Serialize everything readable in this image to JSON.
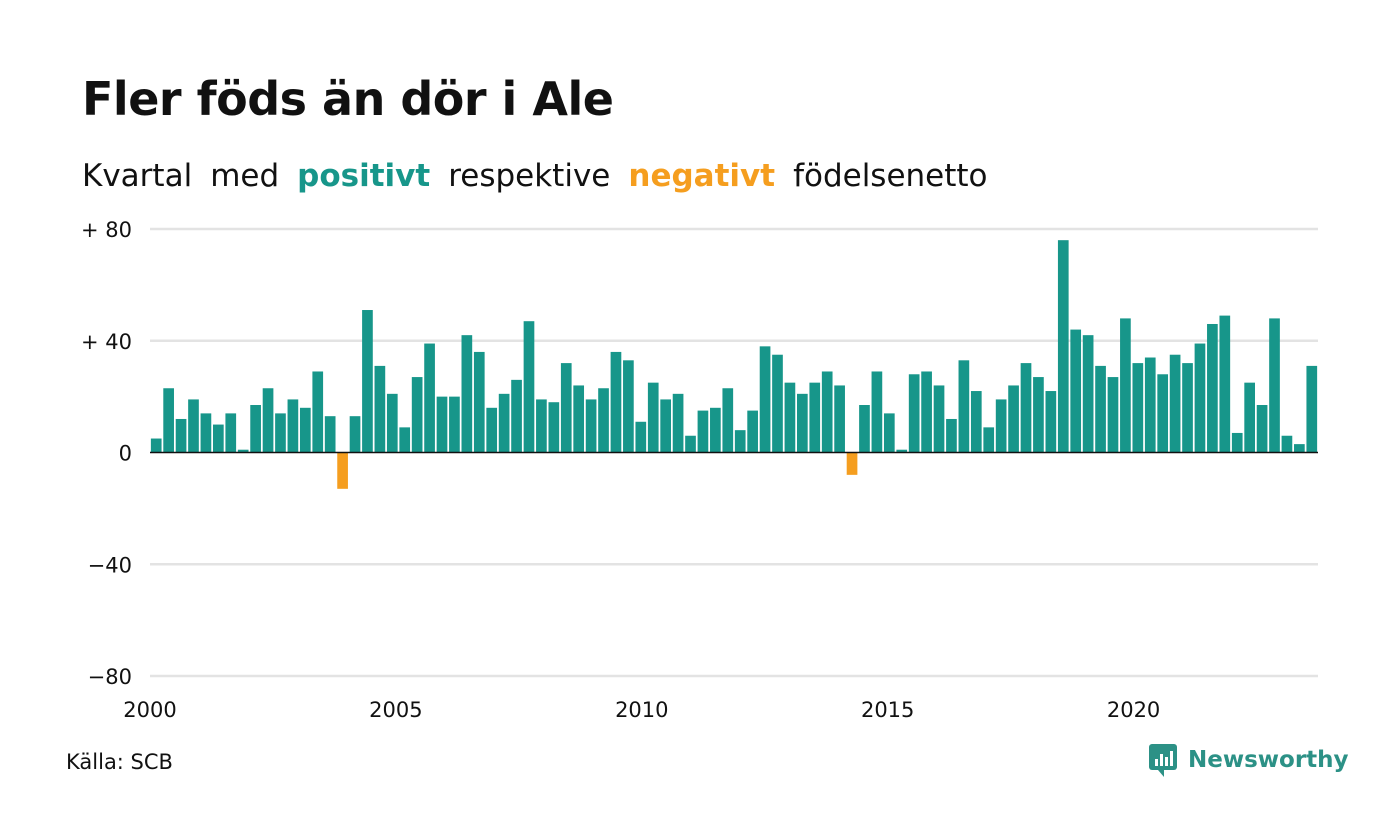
{
  "header": {
    "title": "Fler föds än dör i Ale",
    "subtitle_parts": [
      "Kvartal",
      "med",
      "positivt",
      "respektive",
      "negativt",
      "födelsenetto"
    ]
  },
  "colors": {
    "positive": "#17968A",
    "negative": "#F59E1F",
    "grid": "#E3E3E3",
    "axis": "#111111",
    "brand": "#2C9186"
  },
  "footer": {
    "source": "Källa: SCB",
    "brand": "Newsworthy",
    "brand_icon": "newsworthy-logo-icon"
  },
  "chart_data": {
    "type": "bar",
    "title": "Fler föds än dör i Ale",
    "subtitle": "Kvartal med positivt respektive negativt födelsenetto",
    "xlabel": "",
    "ylabel": "",
    "ylim": [
      -80,
      80
    ],
    "yticks": [
      80,
      40,
      0,
      -40,
      -80
    ],
    "ytick_labels": [
      "+ 80",
      "+ 40",
      "0",
      "−40",
      "−80"
    ],
    "xlim": [
      2000.0,
      2023.75
    ],
    "xticks": [
      2000,
      2005,
      2010,
      2015,
      2020
    ],
    "xtick_labels": [
      "2000",
      "2005",
      "2010",
      "2015",
      "2020"
    ],
    "grid": true,
    "start_year": 2000,
    "quarters_per_year": 4,
    "values": [
      5,
      23,
      12,
      19,
      14,
      10,
      14,
      1,
      17,
      23,
      14,
      19,
      16,
      29,
      13,
      -13,
      13,
      51,
      31,
      21,
      9,
      27,
      39,
      20,
      20,
      42,
      36,
      16,
      21,
      26,
      47,
      19,
      18,
      32,
      24,
      19,
      23,
      36,
      33,
      11,
      25,
      19,
      21,
      6,
      15,
      16,
      23,
      8,
      15,
      38,
      35,
      25,
      21,
      25,
      29,
      24,
      -8,
      17,
      29,
      14,
      1,
      28,
      29,
      24,
      12,
      33,
      22,
      9,
      19,
      24,
      32,
      27,
      22,
      76,
      44,
      42,
      31,
      27,
      48,
      32,
      34,
      28,
      35,
      32,
      39,
      46,
      49,
      7,
      25,
      17,
      48,
      6,
      3,
      31
    ]
  }
}
